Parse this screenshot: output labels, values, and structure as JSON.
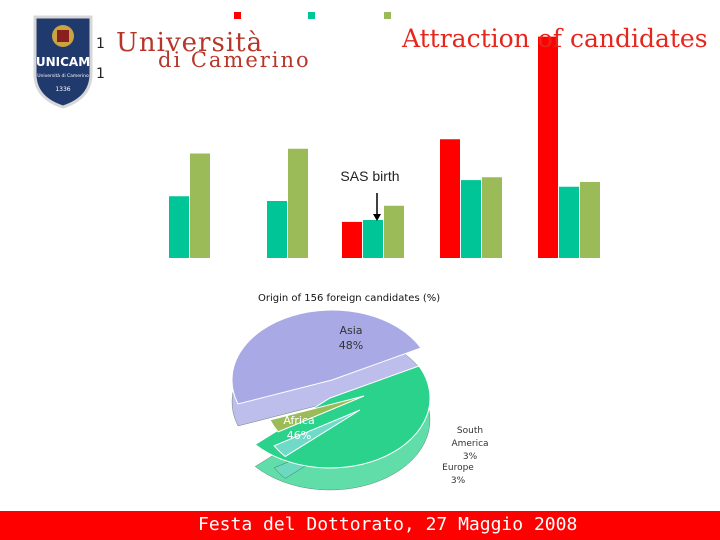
{
  "logo": {
    "name_line1": "Università",
    "name_line2": "di Camerino",
    "shield_text": "UNICAM",
    "shield_subtext": "Università di Camerino",
    "shield_year": "1336",
    "fragments": [
      "1",
      "1"
    ]
  },
  "slide": {
    "title": "Attraction of candidates",
    "footer": "Festa del Dottorato, 27 Maggio 2008"
  },
  "colors": {
    "red": "#ff0000",
    "teal": "#00c596",
    "olive": "#9bbb59",
    "asia": "#a9a9e6",
    "africa": "#2bd28b",
    "south_america": "#6fdac8",
    "europe": "#9bbb59"
  },
  "chart_data": [
    {
      "type": "bar",
      "categories": [
        "",
        "",
        "",
        "",
        ""
      ],
      "series": [
        {
          "values": [
            0,
            0,
            38,
            125,
            233
          ],
          "color": "red"
        },
        {
          "values": [
            65,
            60,
            40,
            82,
            75
          ],
          "color": "teal"
        },
        {
          "values": [
            110,
            115,
            55,
            85,
            80
          ],
          "color": "olive"
        }
      ],
      "ylim": [
        0,
        240
      ],
      "annotations": [
        "SAS birth"
      ]
    },
    {
      "type": "pie",
      "title": "Origin of 156 foreign candidates (%)",
      "slices": [
        {
          "label": "Asia",
          "value": 48,
          "text": "48%",
          "color": "asia"
        },
        {
          "label": "Africa",
          "value": 46,
          "text": "46%",
          "color": "africa"
        },
        {
          "label": "South America",
          "value": 3,
          "text": "3%",
          "color": "south_america"
        },
        {
          "label": "Europe",
          "value": 3,
          "text": "3%",
          "color": "europe"
        }
      ]
    }
  ]
}
